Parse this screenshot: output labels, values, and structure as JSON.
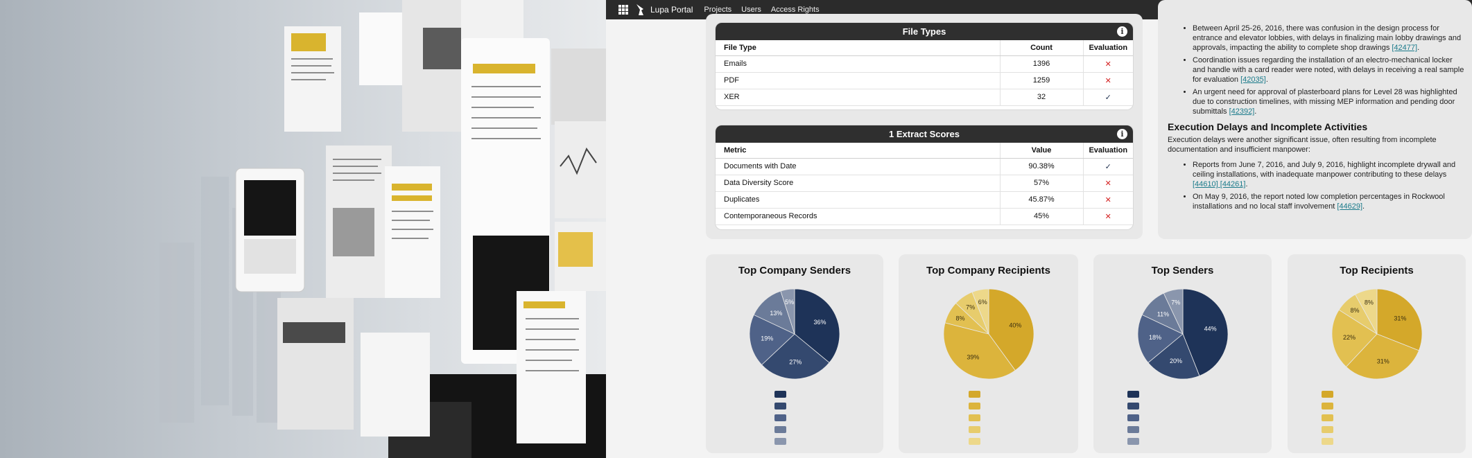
{
  "topbar": {
    "brand": "Lupa Portal",
    "nav": [
      "Projects",
      "Users",
      "Access Rights"
    ],
    "grid_icon": "apps-grid-icon",
    "logo_icon": "lupa-logo-icon"
  },
  "file_types": {
    "title": "File Types",
    "headers": [
      "File Type",
      "Count",
      "Evaluation"
    ],
    "rows": [
      {
        "type": "Emails",
        "count": "1396",
        "evaluation": "✕"
      },
      {
        "type": "PDF",
        "count": "1259",
        "evaluation": "✕"
      },
      {
        "type": "XER",
        "count": "32",
        "evaluation": "✓"
      }
    ]
  },
  "extract_scores": {
    "title": "1 Extract Scores",
    "headers": [
      "Metric",
      "Value",
      "Evaluation"
    ],
    "rows": [
      {
        "metric": "Documents with Date",
        "value": "90.38%",
        "evaluation": "✓"
      },
      {
        "metric": "Data Diversity Score",
        "value": "57%",
        "evaluation": "✕"
      },
      {
        "metric": "Duplicates",
        "value": "45.87%",
        "evaluation": "✕"
      },
      {
        "metric": "Contemporaneous Records",
        "value": "45%",
        "evaluation": "✕"
      }
    ]
  },
  "report": {
    "bullets_1": [
      {
        "text": "Between April 25-26, 2016, there was confusion in the design process for entrance and elevator lobbies, with delays in finalizing main lobby drawings and approvals, impacting the ability to complete shop drawings ",
        "ref": "[42477]",
        "tail": "."
      },
      {
        "text": "Coordination issues regarding the installation of an electro-mechanical locker and handle with a card reader were noted, with delays in receiving a real sample for evaluation ",
        "ref": "[42035]",
        "tail": "."
      },
      {
        "text": "An urgent need for approval of plasterboard plans for Level 28 was highlighted due to construction timelines, with missing MEP information and pending door submittals ",
        "ref": "[42392]",
        "tail": "."
      }
    ],
    "heading": "Execution Delays and Incomplete Activities",
    "paragraph": "Execution delays were another significant issue, often resulting from incomplete documentation and insufficient manpower:",
    "bullets_2": [
      {
        "text": "Reports from June 7, 2016, and July 9, 2016, highlight incomplete drywall and ceiling installations, with inadequate manpower contributing to these delays ",
        "ref": "[44610] [44261]",
        "tail": "."
      },
      {
        "text": "On May 9, 2016, the report noted low completion percentages in Rockwool installations and no local staff involvement ",
        "ref": "[44629]",
        "tail": "."
      }
    ]
  },
  "colors": {
    "dark_bar": "#2f2f2f",
    "fail": "#d42020",
    "pass": "#1e2f4d",
    "link": "#1a7a8a",
    "blue_palette": [
      "#1e3358",
      "#34496f",
      "#4f6288",
      "#6b7b99",
      "#8a96ad",
      "#aab3c3"
    ],
    "gold_palette": [
      "#d4a82a",
      "#dcb43c",
      "#e2c051",
      "#e7cc6c",
      "#edd88a",
      "#f1e1a6"
    ]
  },
  "chart_data": [
    {
      "type": "pie",
      "title": "Top Company Senders",
      "palette": "blue",
      "values": [
        36,
        27,
        19,
        13,
        5
      ],
      "labels": [
        "36%",
        "27%",
        "19%",
        "13%",
        "5%"
      ]
    },
    {
      "type": "pie",
      "title": "Top Company Recipients",
      "palette": "gold",
      "values": [
        40,
        39,
        8,
        7,
        6
      ],
      "labels": [
        "40%",
        "39%",
        "8%",
        "7%",
        "6%"
      ]
    },
    {
      "type": "pie",
      "title": "Top Senders",
      "palette": "blue",
      "values": [
        44,
        20,
        18,
        11,
        7
      ],
      "labels": [
        "44%",
        "20%",
        "18%",
        "11%",
        "7%"
      ]
    },
    {
      "type": "pie",
      "title": "Top Recipients",
      "palette": "gold",
      "values": [
        31,
        31,
        22,
        8,
        8
      ],
      "labels": [
        "31%",
        "31%",
        "22%",
        "8%",
        "8%"
      ]
    }
  ]
}
